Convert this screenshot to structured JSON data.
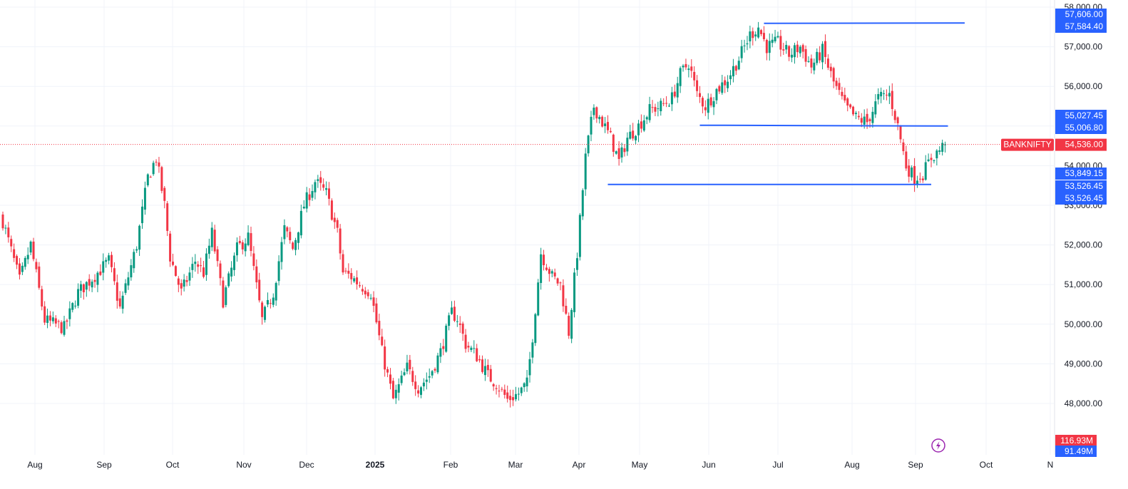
{
  "chart_data": {
    "type": "candlestick",
    "symbol": "BANKNIFTY",
    "last_price": 54536.0,
    "last_price_label": "54,536.00",
    "ylim": [
      47000,
      58000
    ],
    "y_ticks": [
      {
        "value": 48000,
        "label": "48,000.00"
      },
      {
        "value": 49000,
        "label": "49,000.00"
      },
      {
        "value": 50000,
        "label": "50,000.00"
      },
      {
        "value": 51000,
        "label": "51,000.00"
      },
      {
        "value": 52000,
        "label": "52,000.00"
      },
      {
        "value": 53000,
        "label": "53,000.00"
      },
      {
        "value": 54000,
        "label": "54,000.00"
      },
      {
        "value": 55000,
        "label": "55,000.00"
      },
      {
        "value": 56000,
        "label": "56,000.00"
      },
      {
        "value": 57000,
        "label": "57,000.00"
      },
      {
        "value": 58000,
        "label": "58,000.00"
      }
    ],
    "x_ticks": [
      {
        "label": "Aug",
        "bold": false
      },
      {
        "label": "Sep",
        "bold": false
      },
      {
        "label": "Oct",
        "bold": false
      },
      {
        "label": "Nov",
        "bold": false
      },
      {
        "label": "Dec",
        "bold": false
      },
      {
        "label": "2025",
        "bold": true
      },
      {
        "label": "Feb",
        "bold": false
      },
      {
        "label": "Mar",
        "bold": false
      },
      {
        "label": "Apr",
        "bold": false
      },
      {
        "label": "May",
        "bold": false
      },
      {
        "label": "Jun",
        "bold": false
      },
      {
        "label": "Jul",
        "bold": false
      },
      {
        "label": "Aug",
        "bold": false
      },
      {
        "label": "Sep",
        "bold": false
      },
      {
        "label": "Oct",
        "bold": false
      },
      {
        "label": "N",
        "bold": false
      }
    ],
    "price_labels": [
      {
        "value": 57606.0,
        "label": "57,606.00",
        "color": "#2962ff"
      },
      {
        "value": 57584.4,
        "label": "57,584.40",
        "color": "#2962ff"
      },
      {
        "value": 55027.45,
        "label": "55,027.45",
        "color": "#2962ff"
      },
      {
        "value": 55006.8,
        "label": "55,006.80",
        "color": "#2962ff"
      },
      {
        "value": 53849.15,
        "label": "53,849.15",
        "color": "#2962ff"
      },
      {
        "value": 53526.45,
        "label": "53,526.45",
        "color": "#2962ff"
      },
      {
        "value": 53526.45,
        "label": "53,526.45",
        "color": "#2962ff"
      }
    ],
    "volume_labels": [
      {
        "label": "116.93M",
        "color": "#f23645"
      },
      {
        "label": "91.49M",
        "color": "#2962ff"
      }
    ],
    "drawn_levels": [
      {
        "name": "resistance-top",
        "y_start": 57590,
        "y_end": 57600,
        "x_start_bar": 273,
        "x_end_bar": 345
      },
      {
        "name": "mid-support",
        "y_start": 55020,
        "y_end": 55000,
        "x_start_bar": 250,
        "x_end_bar": 339
      },
      {
        "name": "lower-support",
        "y_start": 53526.45,
        "y_end": 53526.45,
        "x_start_bar": 217,
        "x_end_bar": 333
      }
    ],
    "anchors": [
      {
        "bar": 0,
        "price": 52600
      },
      {
        "bar": 6,
        "price": 51100
      },
      {
        "bar": 10,
        "price": 52000
      },
      {
        "bar": 15,
        "price": 50100
      },
      {
        "bar": 22,
        "price": 49900
      },
      {
        "bar": 27,
        "price": 50800
      },
      {
        "bar": 34,
        "price": 51300
      },
      {
        "bar": 38,
        "price": 51600
      },
      {
        "bar": 42,
        "price": 50400
      },
      {
        "bar": 48,
        "price": 52000
      },
      {
        "bar": 52,
        "price": 53700
      },
      {
        "bar": 55,
        "price": 54200
      },
      {
        "bar": 58,
        "price": 53000
      },
      {
        "bar": 60,
        "price": 51700
      },
      {
        "bar": 64,
        "price": 50800
      },
      {
        "bar": 69,
        "price": 51600
      },
      {
        "bar": 72,
        "price": 51300
      },
      {
        "bar": 75,
        "price": 52300
      },
      {
        "bar": 79,
        "price": 50600
      },
      {
        "bar": 84,
        "price": 51900
      },
      {
        "bar": 88,
        "price": 52200
      },
      {
        "bar": 93,
        "price": 50100
      },
      {
        "bar": 97,
        "price": 50800
      },
      {
        "bar": 101,
        "price": 52400
      },
      {
        "bar": 104,
        "price": 51900
      },
      {
        "bar": 108,
        "price": 53000
      },
      {
        "bar": 112,
        "price": 53600
      },
      {
        "bar": 116,
        "price": 53300
      },
      {
        "bar": 120,
        "price": 52300
      },
      {
        "bar": 122,
        "price": 51300
      },
      {
        "bar": 125,
        "price": 51200
      },
      {
        "bar": 128,
        "price": 51000
      },
      {
        "bar": 132,
        "price": 50800
      },
      {
        "bar": 136,
        "price": 49300
      },
      {
        "bar": 140,
        "price": 48100
      },
      {
        "bar": 145,
        "price": 48900
      },
      {
        "bar": 149,
        "price": 48400
      },
      {
        "bar": 153,
        "price": 48700
      },
      {
        "bar": 157,
        "price": 49300
      },
      {
        "bar": 161,
        "price": 50300
      },
      {
        "bar": 163,
        "price": 50150
      },
      {
        "bar": 166,
        "price": 49500
      },
      {
        "bar": 170,
        "price": 49200
      },
      {
        "bar": 174,
        "price": 48700
      },
      {
        "bar": 177,
        "price": 48500
      },
      {
        "bar": 181,
        "price": 48100
      },
      {
        "bar": 185,
        "price": 48250
      },
      {
        "bar": 188,
        "price": 48500
      },
      {
        "bar": 190,
        "price": 49700
      },
      {
        "bar": 193,
        "price": 51800
      },
      {
        "bar": 197,
        "price": 51200
      },
      {
        "bar": 200,
        "price": 51000
      },
      {
        "bar": 203,
        "price": 49800
      },
      {
        "bar": 206,
        "price": 51800
      },
      {
        "bar": 209,
        "price": 54200
      },
      {
        "bar": 212,
        "price": 55500
      },
      {
        "bar": 215,
        "price": 55100
      },
      {
        "bar": 218,
        "price": 54700
      },
      {
        "bar": 221,
        "price": 54100
      },
      {
        "bar": 224,
        "price": 54700
      },
      {
        "bar": 228,
        "price": 55000
      },
      {
        "bar": 232,
        "price": 55400
      },
      {
        "bar": 236,
        "price": 55500
      },
      {
        "bar": 240,
        "price": 55700
      },
      {
        "bar": 243,
        "price": 56300
      },
      {
        "bar": 246,
        "price": 56600
      },
      {
        "bar": 249,
        "price": 55800
      },
      {
        "bar": 252,
        "price": 55500
      },
      {
        "bar": 256,
        "price": 55900
      },
      {
        "bar": 260,
        "price": 56200
      },
      {
        "bar": 264,
        "price": 56700
      },
      {
        "bar": 268,
        "price": 57300
      },
      {
        "bar": 271,
        "price": 57500
      },
      {
        "bar": 274,
        "price": 57000
      },
      {
        "bar": 278,
        "price": 57100
      },
      {
        "bar": 282,
        "price": 56800
      },
      {
        "bar": 286,
        "price": 57000
      },
      {
        "bar": 290,
        "price": 56500
      },
      {
        "bar": 294,
        "price": 56900
      },
      {
        "bar": 298,
        "price": 56100
      },
      {
        "bar": 302,
        "price": 55500
      },
      {
        "bar": 306,
        "price": 55200
      },
      {
        "bar": 310,
        "price": 55100
      },
      {
        "bar": 314,
        "price": 55700
      },
      {
        "bar": 318,
        "price": 55800
      },
      {
        "bar": 321,
        "price": 55000
      },
      {
        "bar": 324,
        "price": 54000
      },
      {
        "bar": 327,
        "price": 53700
      },
      {
        "bar": 330,
        "price": 53800
      },
      {
        "bar": 333,
        "price": 54200
      },
      {
        "bar": 336,
        "price": 54400
      },
      {
        "bar": 338,
        "price": 54536
      }
    ],
    "last_bar": 338,
    "total_bars": 376
  }
}
